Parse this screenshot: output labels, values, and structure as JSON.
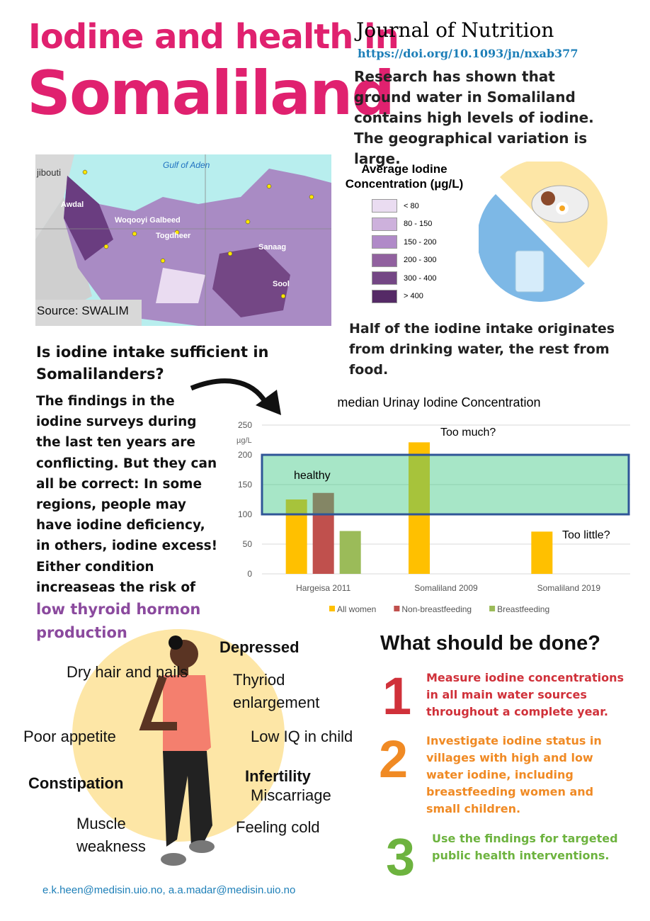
{
  "header": {
    "title_line1": "Iodine and health in",
    "title_line2": "Somaliland",
    "journal": "Journal of Nutrition",
    "doi": "https://doi.org/10.1093/jn/nxab377",
    "intro": "Research has shown that ground water in Somaliland contains high levels of iodine. The geographical variation is large."
  },
  "map": {
    "sea": "Gulf of Aden",
    "country": "jibouti",
    "regions": [
      "Awdal",
      "Woqooyi Galbeed",
      "Togdheer",
      "Sanaag",
      "Sool"
    ],
    "source": "Source: SWALIM",
    "legend_title": "Average Iodine Concentration (µg/L)",
    "legend": [
      {
        "label": "< 80",
        "color": "#eadcf1"
      },
      {
        "label": "80 - 150",
        "color": "#cdb1dc"
      },
      {
        "label": "150 - 200",
        "color": "#b08ac8"
      },
      {
        "label": "200 - 300",
        "color": "#91619f"
      },
      {
        "label": "300 - 400",
        "color": "#744785"
      },
      {
        "label": "> 400",
        "color": "#552a66"
      }
    ]
  },
  "pie_caption": "Half of the iodine intake originates from drinking water, the rest from food.",
  "question": "Is iodine intake sufficient in Somalilanders?",
  "findings": "The findings in the iodine surveys during the last ten years are conflicting. But they can all be correct: In some regions, people may have iodine deficiency, in others, iodine excess! Either condition increaseas the risk of",
  "findings_highlight": "low thyroid hormon production",
  "chart_data": {
    "type": "bar",
    "title": "median Urinay Iodine Concentration",
    "y_unit": "µg/L",
    "categories": [
      "Hargeisa 2011",
      "Somaliland 2009",
      "Somaliland 2019"
    ],
    "series": [
      {
        "name": "All women",
        "color": "#ffc000",
        "values": [
          125,
          221,
          71
        ]
      },
      {
        "name": "Non-breastfeeding",
        "color": "#c0504d",
        "values": [
          136,
          null,
          null
        ]
      },
      {
        "name": "Breastfeeding",
        "color": "#9bbb59",
        "values": [
          72,
          null,
          null
        ]
      }
    ],
    "ylim": [
      0,
      250
    ],
    "yticks": [
      0,
      50,
      100,
      150,
      200,
      250
    ],
    "grid": true,
    "legend": "bottom",
    "healthy_range": [
      100,
      200
    ],
    "healthy_label": "healthy",
    "annotations": [
      "Too much?",
      "Too little?"
    ]
  },
  "symptoms": [
    "Depressed",
    "Dry hair and nails",
    "Thyriod enlargement",
    "Poor appetite",
    "Low IQ in child",
    "Constipation",
    "Infertility",
    "Miscarriage",
    "Muscle weakness",
    "Feeling cold"
  ],
  "actions": {
    "title": "What should be done?",
    "steps": [
      {
        "number": "1",
        "text": "Measure iodine concentrations in all main water sources throughout a complete year.",
        "color": "#d0313a"
      },
      {
        "number": "2",
        "text": "Investigate iodine status in villages with high and low water iodine, including breastfeeding women and small children.",
        "color": "#f08a24"
      },
      {
        "number": "3",
        "text": "Use the findings for targeted public health interventions.",
        "color": "#6db33f"
      }
    ]
  },
  "footer": "e.k.heen@medisin.uio.no, a.a.madar@medisin.uio.no"
}
